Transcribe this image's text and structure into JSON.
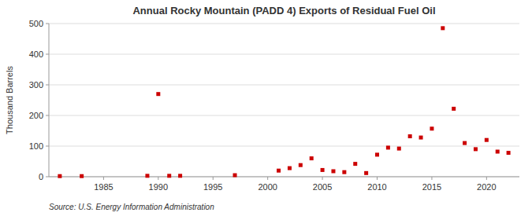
{
  "chart_data": {
    "type": "scatter",
    "title": "Annual Rocky Mountain (PADD 4) Exports of Residual Fuel Oil",
    "ylabel": "Thousand Barrels",
    "annotations": [
      "Source: U.S. Energy Information Administration"
    ],
    "x": [
      1981,
      1983,
      1989,
      1990,
      1991,
      1992,
      1997,
      2001,
      2002,
      2003,
      2004,
      2005,
      2006,
      2007,
      2008,
      2009,
      2010,
      2011,
      2012,
      2013,
      2014,
      2015,
      2016,
      2017,
      2018,
      2019,
      2020,
      2021,
      2022
    ],
    "values": [
      2,
      2,
      3,
      270,
      3,
      3,
      5,
      20,
      28,
      38,
      60,
      22,
      18,
      15,
      42,
      12,
      72,
      95,
      92,
      132,
      128,
      157,
      485,
      222,
      110,
      90,
      120,
      82,
      78
    ],
    "color": "#cc0000",
    "marker": "square",
    "xlim": [
      1980,
      2023
    ],
    "ylim": [
      0,
      500
    ],
    "xticks": [
      1985,
      1990,
      1995,
      2000,
      2005,
      2010,
      2015,
      2020
    ],
    "yticks": [
      0,
      100,
      200,
      300,
      400,
      500
    ],
    "grid": "y"
  }
}
